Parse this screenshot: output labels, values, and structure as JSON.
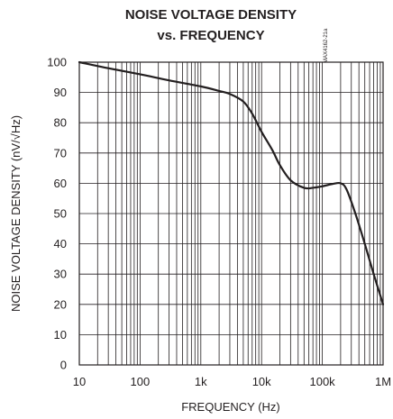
{
  "chart_data": {
    "type": "line",
    "title_line1": "NOISE VOLTAGE DENSITY",
    "title_line2": "vs. FREQUENCY",
    "xlabel": "FREQUENCY (Hz)",
    "ylabel": "NOISE VOLTAGE DENSITY (nV/√Hz)",
    "graph_id": "MAX4162-21a",
    "x_scale": "log",
    "xlim": [
      10,
      1000000
    ],
    "ylim": [
      0,
      100
    ],
    "grid": true,
    "x_ticks": [
      10,
      100,
      1000,
      10000,
      100000,
      1000000
    ],
    "x_tick_labels": [
      "10",
      "100",
      "1k",
      "10k",
      "100k",
      "1M"
    ],
    "y_ticks": [
      0,
      10,
      20,
      30,
      40,
      50,
      60,
      70,
      80,
      90,
      100
    ],
    "y_tick_labels": [
      "0",
      "10",
      "20",
      "30",
      "40",
      "50",
      "60",
      "70",
      "80",
      "90",
      "100"
    ],
    "series": [
      {
        "x": [
          10,
          30,
          100,
          300,
          1000,
          2000,
          3000,
          5000,
          7000,
          10000,
          15000,
          20000,
          30000,
          50000,
          70000,
          100000,
          150000,
          200000,
          250000,
          350000,
          500000,
          700000,
          1000000
        ],
        "y": [
          100,
          98,
          96,
          94,
          92,
          90.5,
          89.5,
          87,
          83,
          77,
          71,
          66,
          61,
          58.5,
          58.5,
          59,
          59.8,
          60,
          58,
          50,
          40,
          30,
          20
        ]
      }
    ]
  }
}
